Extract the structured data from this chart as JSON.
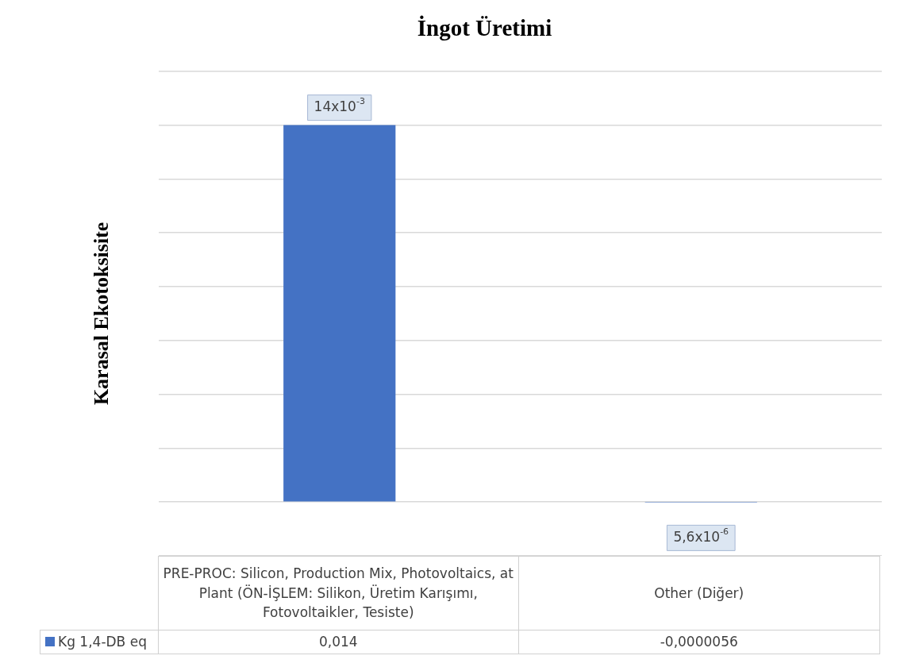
{
  "chart_data": {
    "type": "bar",
    "title": "İngot Üretimi",
    "ylabel": "Karasal Ekotoksisite",
    "categories": [
      "PRE-PROC: Silicon, Production Mix, Photovoltaics, at Plant (ÖN-İŞLEM: Silikon, Üretim Karışımı, Fotovoltaikler, Tesiste)",
      "Other (Diğer)"
    ],
    "series": [
      {
        "name": "Kg 1,4-DB eq",
        "color": "#4472c4",
        "values": [
          0.014,
          -5.6e-06
        ],
        "value_labels": [
          "0,014",
          "-0,0000056"
        ]
      }
    ],
    "annotations": [
      {
        "text": "14x10$^{-3}$",
        "x": "PRE-PROC: Silicon, Production Mix, Photovoltaics, at Plant (ÖN-İŞLEM: Silikon, Üretim Karışımı, Fotovoltaikler, Tesiste)",
        "y": 0.014
      },
      {
        "text": "5,6x10$^{-6}$",
        "x": "Other (Diğer)",
        "y": -5.6e-06
      }
    ],
    "ylim": [
      -0.002,
      0.016
    ],
    "yticks": [
      {
        "value": -0.002,
        "label": null
      },
      {
        "value": 0,
        "label": null
      },
      {
        "value": 0.002,
        "label": null
      },
      {
        "value": 0.004,
        "label": null
      },
      {
        "value": 0.006,
        "label": null
      },
      {
        "value": 0.008,
        "label": null
      },
      {
        "value": 0.01,
        "label": null
      },
      {
        "value": 0.012,
        "label": null
      },
      {
        "value": 0.014,
        "label": null
      },
      {
        "value": 0.016,
        "label": null
      }
    ],
    "grid": "y",
    "tick_labels": "x",
    "legend": "bottom"
  }
}
